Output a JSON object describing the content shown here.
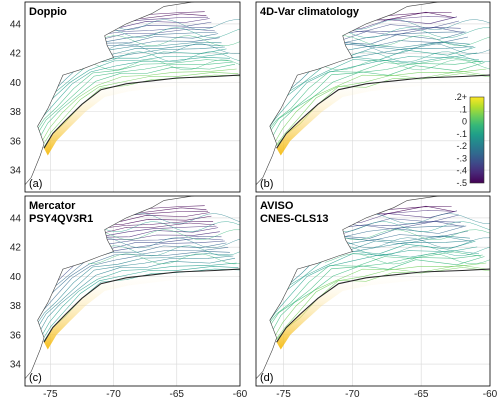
{
  "figure": {
    "x_ticks": [
      "-75",
      "-70",
      "-65",
      "-60"
    ],
    "y_ticks": [
      "44",
      "42",
      "40",
      "38",
      "36",
      "34"
    ],
    "panels": [
      {
        "id": "a",
        "title_lines": [
          "Doppio"
        ],
        "label": "(a)"
      },
      {
        "id": "b",
        "title_lines": [
          "4D-Var climatology"
        ],
        "label": "(b)"
      },
      {
        "id": "c",
        "title_lines": [
          "Mercator",
          "PSY4QV3R1"
        ],
        "label": "(c)"
      },
      {
        "id": "d",
        "title_lines": [
          "AVISO",
          "CNES-CLS13"
        ],
        "label": "(d)"
      }
    ],
    "colorbar": {
      "ticks": [
        ".2+",
        ".1",
        "0",
        "-.1",
        "-.2",
        "-.3",
        "-.4",
        "-.5"
      ],
      "colors": [
        "#fde725",
        "#b5de2b",
        "#6ece58",
        "#35b779",
        "#1f9e89",
        "#26828e",
        "#31688e",
        "#3e4989",
        "#482878",
        "#440154"
      ]
    },
    "colors": {
      "land": "#ffffff",
      "ocean": "#ffffff",
      "grid": "#d9d9d9",
      "coast": "#444444",
      "shelf_contour": "#2a2a2a"
    }
  },
  "map_data": {
    "lon_range": [
      -77,
      -60
    ],
    "lat_range": [
      32.5,
      45.5
    ],
    "coastline": [
      [
        -76.5,
        33.5
      ],
      [
        -75.8,
        35.0
      ],
      [
        -75.5,
        35.8
      ],
      [
        -76.0,
        37.0
      ],
      [
        -75.2,
        38.2
      ],
      [
        -74.5,
        39.5
      ],
      [
        -74.0,
        40.5
      ],
      [
        -72.5,
        40.9
      ],
      [
        -71.0,
        41.4
      ],
      [
        -70.0,
        41.7
      ],
      [
        -70.5,
        42.5
      ],
      [
        -70.7,
        43.2
      ],
      [
        -69.0,
        44.0
      ],
      [
        -67.0,
        44.7
      ],
      [
        -66.0,
        45.2
      ]
    ],
    "shelf_break": [
      [
        -75.5,
        35.5
      ],
      [
        -74.8,
        36.5
      ],
      [
        -73.8,
        37.4
      ],
      [
        -72.5,
        38.5
      ],
      [
        -71.0,
        39.5
      ],
      [
        -69.0,
        39.9
      ],
      [
        -67.0,
        40.1
      ],
      [
        -65.0,
        40.3
      ],
      [
        -62.0,
        40.4
      ],
      [
        -60.0,
        40.5
      ]
    ]
  }
}
